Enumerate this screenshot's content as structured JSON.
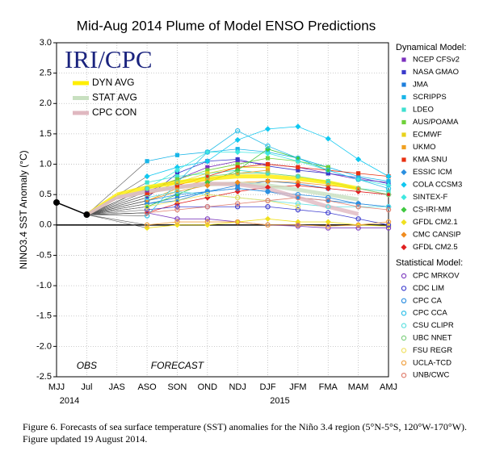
{
  "chart_data": {
    "type": "line",
    "title": "Mid-Aug 2014 Plume of Model ENSO Predictions",
    "ylabel": "NINO3.4 SST Anomaly (°C)",
    "logo": "IRI/CPC",
    "categories": [
      "MJJ",
      "Jul",
      "JAS",
      "ASO",
      "SON",
      "OND",
      "NDJ",
      "DJF",
      "JFM",
      "FMA",
      "MAM",
      "AMJ"
    ],
    "years": [
      "2014",
      "2015"
    ],
    "obs_label": "OBS",
    "forecast_label": "FORECAST",
    "ylim": [
      -2.5,
      3.0
    ],
    "yticks": [
      {
        "value": -2.5,
        "label": "-2.5"
      },
      {
        "value": -2,
        "label": "-2.0"
      },
      {
        "value": -1.5,
        "label": "-1.5"
      },
      {
        "value": -1,
        "label": "-1.0"
      },
      {
        "value": -0.5,
        "label": "-0.5"
      },
      {
        "value": 0,
        "label": "0.0"
      },
      {
        "value": 0.5,
        "label": "0.5"
      },
      {
        "value": 1,
        "label": "1.0"
      },
      {
        "value": 1.5,
        "label": "1.5"
      },
      {
        "value": 2,
        "label": "2.0"
      },
      {
        "value": 2.5,
        "label": "2.5"
      },
      {
        "value": 3,
        "label": "3.0"
      }
    ],
    "grid": true,
    "obs": {
      "color": "#000000",
      "values": [
        0.37,
        0.17,
        null,
        null,
        null,
        null,
        null,
        null,
        null,
        null,
        null,
        null
      ]
    },
    "averages": [
      {
        "name": "DYN AVG",
        "color": "#ffee00",
        "values": [
          null,
          null,
          0.5,
          0.62,
          0.7,
          0.76,
          0.8,
          0.8,
          0.76,
          0.7,
          0.6,
          null
        ]
      },
      {
        "name": "STAT AVG",
        "color": "#c8e0c0",
        "values": [
          null,
          null,
          0.45,
          0.55,
          0.62,
          0.67,
          0.68,
          0.65,
          0.58,
          0.5,
          0.42,
          null
        ]
      },
      {
        "name": "CPC CON",
        "color": "#e0b8c0",
        "values": [
          null,
          null,
          0.45,
          0.55,
          0.62,
          0.68,
          0.67,
          0.6,
          0.45,
          0.3,
          0.18,
          null
        ]
      }
    ],
    "group_titles": [
      "Dynamical Model:",
      "Statistical Model:"
    ],
    "series": [
      {
        "name": "NCEP CFSv2",
        "group": 0,
        "marker": "square",
        "color": "#7b2fbe",
        "values": [
          null,
          null,
          null,
          0.55,
          0.75,
          0.95,
          1.05,
          1.0,
          0.95,
          0.85,
          0.75,
          0.7
        ]
      },
      {
        "name": "NASA GMAO",
        "group": 0,
        "marker": "square",
        "color": "#3a3acb",
        "values": [
          null,
          null,
          null,
          0.45,
          0.85,
          1.05,
          1.08,
          0.97,
          0.9,
          0.85,
          0.78,
          0.68
        ]
      },
      {
        "name": "JMA",
        "group": 0,
        "marker": "square",
        "color": "#1e7fdc",
        "values": [
          null,
          null,
          null,
          0.35,
          0.45,
          0.55,
          0.65,
          0.72,
          0.68,
          0.6,
          null,
          null
        ]
      },
      {
        "name": "SCRIPPS",
        "group": 0,
        "marker": "square",
        "color": "#19b5e8",
        "values": [
          null,
          null,
          null,
          1.05,
          1.15,
          1.2,
          1.25,
          1.2,
          1.1,
          0.95,
          0.8,
          0.72
        ]
      },
      {
        "name": "LDEO",
        "group": 0,
        "marker": "square",
        "color": "#3ee0d0",
        "values": [
          null,
          null,
          null,
          0.7,
          0.8,
          0.85,
          0.9,
          0.85,
          0.8,
          0.72,
          0.6,
          0.55
        ]
      },
      {
        "name": "AUS/POAMA",
        "group": 0,
        "marker": "square",
        "color": "#6fd13a",
        "values": [
          null,
          null,
          null,
          0.6,
          0.75,
          0.9,
          1.0,
          1.1,
          1.05,
          0.95,
          null,
          null
        ]
      },
      {
        "name": "ECMWF",
        "group": 0,
        "marker": "square",
        "color": "#e8d21a",
        "values": [
          null,
          null,
          null,
          0.5,
          0.7,
          0.85,
          0.95,
          0.95,
          null,
          null,
          null,
          null
        ]
      },
      {
        "name": "UKMO",
        "group": 0,
        "marker": "square",
        "color": "#f0a020",
        "values": [
          null,
          null,
          null,
          0.4,
          0.6,
          0.75,
          0.85,
          0.9,
          null,
          null,
          null,
          null
        ]
      },
      {
        "name": "KMA SNU",
        "group": 0,
        "marker": "square",
        "color": "#e83010",
        "values": [
          null,
          null,
          null,
          0.5,
          0.65,
          0.8,
          0.95,
          1.0,
          0.95,
          0.9,
          0.85,
          0.8
        ]
      },
      {
        "name": "ESSIC ICM",
        "group": 0,
        "marker": "diamond",
        "color": "#2a8fe0",
        "values": [
          null,
          null,
          null,
          0.35,
          0.4,
          0.55,
          0.6,
          0.55,
          0.45,
          0.4,
          0.35,
          0.3
        ]
      },
      {
        "name": "COLA CCSM3",
        "group": 0,
        "marker": "diamond",
        "color": "#10c8f0",
        "values": [
          null,
          null,
          null,
          0.8,
          0.95,
          1.05,
          1.4,
          1.58,
          1.62,
          1.42,
          1.08,
          0.8
        ]
      },
      {
        "name": "SINTEX-F",
        "group": 0,
        "marker": "diamond",
        "color": "#40e8e0",
        "values": [
          null,
          null,
          null,
          0.6,
          0.9,
          1.2,
          1.2,
          1.18,
          1.05,
          0.9,
          0.75,
          0.65
        ]
      },
      {
        "name": "CS-IRI-MM",
        "group": 0,
        "marker": "diamond",
        "color": "#40c840",
        "values": [
          null,
          null,
          null,
          0.3,
          0.5,
          0.7,
          0.9,
          1.25,
          1.1,
          0.9,
          null,
          null
        ]
      },
      {
        "name": "GFDL CM2.1",
        "group": 0,
        "marker": "diamond",
        "color": "#f0e020",
        "values": [
          null,
          null,
          null,
          -0.05,
          0.0,
          0.0,
          0.05,
          0.1,
          0.05,
          0.05,
          0.0,
          -0.02
        ]
      },
      {
        "name": "CMC CANSIP",
        "group": 0,
        "marker": "diamond",
        "color": "#f08c20",
        "values": [
          null,
          null,
          null,
          0.4,
          0.55,
          0.65,
          0.7,
          0.72,
          0.7,
          0.65,
          0.6,
          0.5
        ]
      },
      {
        "name": "GFDL CM2.5",
        "group": 0,
        "marker": "diamond",
        "color": "#e02020",
        "values": [
          null,
          null,
          null,
          0.2,
          0.35,
          0.45,
          0.55,
          0.62,
          0.65,
          0.6,
          0.55,
          0.5
        ]
      },
      {
        "name": "CPC MRKOV",
        "group": 1,
        "marker": "circle",
        "color": "#8040c0",
        "values": [
          null,
          null,
          null,
          0.2,
          0.1,
          0.1,
          0.05,
          0.0,
          -0.02,
          -0.05,
          -0.05,
          -0.05
        ]
      },
      {
        "name": "CDC LIM",
        "group": 1,
        "marker": "circle",
        "color": "#4040d0",
        "values": [
          null,
          null,
          null,
          0.25,
          0.3,
          0.3,
          0.3,
          0.3,
          0.25,
          0.2,
          0.1,
          0.0
        ]
      },
      {
        "name": "CPC CA",
        "group": 1,
        "marker": "circle",
        "color": "#3090e0",
        "values": [
          null,
          null,
          null,
          0.4,
          0.5,
          0.55,
          0.6,
          0.55,
          0.5,
          0.45,
          0.35,
          0.3
        ]
      },
      {
        "name": "CPC CCA",
        "group": 1,
        "marker": "circle",
        "color": "#30c0e8",
        "values": [
          null,
          null,
          null,
          0.15,
          0.7,
          1.2,
          1.55,
          1.3,
          1.1,
          0.9,
          0.75,
          0.6
        ]
      },
      {
        "name": "CSU CLIPR",
        "group": 1,
        "marker": "circle",
        "color": "#60e0e0",
        "values": [
          null,
          null,
          null,
          0.45,
          0.55,
          0.5,
          0.45,
          0.4,
          0.35,
          0.3,
          0.3,
          0.3
        ]
      },
      {
        "name": "UBC NNET",
        "group": 1,
        "marker": "circle",
        "color": "#80d080",
        "values": [
          null,
          null,
          null,
          0.6,
          0.7,
          0.8,
          0.85,
          0.85,
          0.8,
          0.7,
          0.6,
          0.5
        ]
      },
      {
        "name": "FSU REGR",
        "group": 1,
        "marker": "circle",
        "color": "#f0e060",
        "values": [
          null,
          null,
          null,
          0.3,
          0.4,
          0.5,
          0.45,
          0.4,
          0.3,
          null,
          null,
          null
        ]
      },
      {
        "name": "UCLA-TCD",
        "group": 1,
        "marker": "circle",
        "color": "#f0a040",
        "values": [
          null,
          null,
          null,
          0.0,
          0.05,
          0.05,
          0.05,
          0.0,
          0.0,
          -0.02,
          0.0,
          0.05
        ]
      },
      {
        "name": "UNB/CWC",
        "group": 1,
        "marker": "circle",
        "color": "#e08070",
        "values": [
          null,
          null,
          null,
          0.2,
          0.25,
          0.3,
          0.35,
          0.4,
          0.45,
          0.4,
          0.3,
          0.25
        ]
      }
    ]
  },
  "caption": "Figure 6. Forecasts of sea surface temperature (SST) anomalies for the Niño 3.4 region (5°N-5°S, 120°W-170°W).  Figure updated 19 August 2014."
}
